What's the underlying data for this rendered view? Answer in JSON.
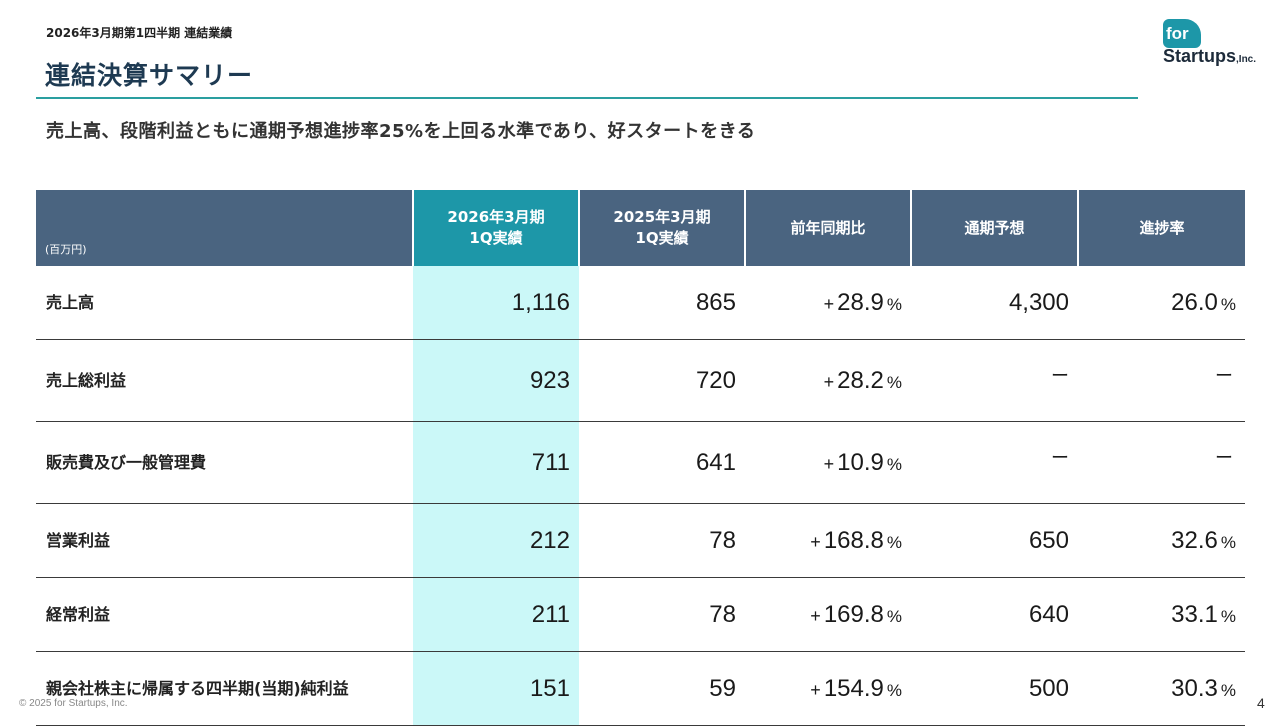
{
  "header": {
    "breadcrumb": "2026年3月期第1四半期 連結業績",
    "title": "連結決算サマリー",
    "subtitle": "売上高、段階利益ともに通期予想進捗率25%を上回る水準であり、好スタートをきる"
  },
  "logo": {
    "badge": "for",
    "name": "Startups",
    "suffix": ",Inc."
  },
  "table": {
    "unit": "(百万円)",
    "columns": [
      {
        "line1": "2026年3月期",
        "line2": "1Q実績"
      },
      {
        "line1": "2025年3月期",
        "line2": "1Q実績"
      },
      {
        "line1": "前年同期比"
      },
      {
        "line1": "通期予想"
      },
      {
        "line1": "進捗率"
      }
    ],
    "rows": [
      {
        "label": "売上高",
        "current": "1,116",
        "prev": "865",
        "yoy_sign": "+",
        "yoy": "28.9",
        "yoy_unit": "%",
        "forecast": "4,300",
        "progress": "26.0",
        "progress_unit": "%"
      },
      {
        "label": "売上総利益",
        "current": "923",
        "prev": "720",
        "yoy_sign": "+",
        "yoy": "28.2",
        "yoy_unit": "%",
        "forecast": "ー",
        "progress": "ー",
        "progress_unit": ""
      },
      {
        "label": "販売費及び一般管理費",
        "current": "711",
        "prev": "641",
        "yoy_sign": "+",
        "yoy": "10.9",
        "yoy_unit": "%",
        "forecast": "ー",
        "progress": "ー",
        "progress_unit": ""
      },
      {
        "label": "営業利益",
        "current": "212",
        "prev": "78",
        "yoy_sign": "+",
        "yoy": "168.8",
        "yoy_unit": "%",
        "forecast": "650",
        "progress": "32.6",
        "progress_unit": "%"
      },
      {
        "label": "経常利益",
        "current": "211",
        "prev": "78",
        "yoy_sign": "+",
        "yoy": "169.8",
        "yoy_unit": "%",
        "forecast": "640",
        "progress": "33.1",
        "progress_unit": "%"
      },
      {
        "label": "親会社株主に帰属する四半期(当期)純利益",
        "current": "151",
        "prev": "59",
        "yoy_sign": "+",
        "yoy": "154.9",
        "yoy_unit": "%",
        "forecast": "500",
        "progress": "30.3",
        "progress_unit": "%"
      }
    ]
  },
  "footer": {
    "copyright": "© 2025 for Startups, Inc.",
    "page": "4"
  },
  "colors": {
    "header_bg": "#4a6480",
    "current_header_bg": "#1d97a8",
    "current_cell_bg": "#cbf8f8",
    "rule": "#2a9fa0"
  }
}
